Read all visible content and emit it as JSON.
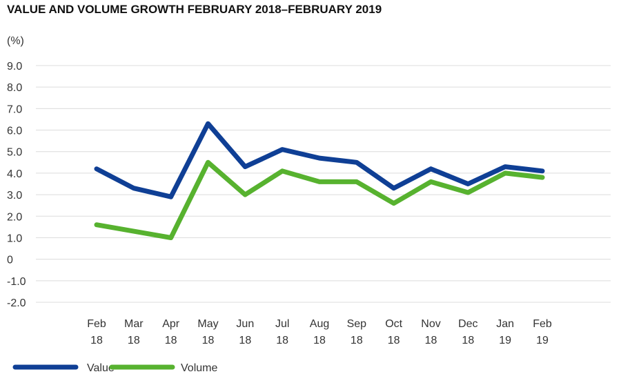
{
  "chart_data": {
    "type": "line",
    "title": "VALUE AND VOLUME GROWTH FEBRUARY 2018–FEBRUARY 2019",
    "ylabel": "(%)",
    "xlabel": "",
    "categories": [
      [
        "Feb",
        "18"
      ],
      [
        "Mar",
        "18"
      ],
      [
        "Apr",
        "18"
      ],
      [
        "May",
        "18"
      ],
      [
        "Jun",
        "18"
      ],
      [
        "Jul",
        "18"
      ],
      [
        "Aug",
        "18"
      ],
      [
        "Sep",
        "18"
      ],
      [
        "Oct",
        "18"
      ],
      [
        "Nov",
        "18"
      ],
      [
        "Dec",
        "18"
      ],
      [
        "Jan",
        "19"
      ],
      [
        "Feb",
        "19"
      ]
    ],
    "yticks": [
      "9.0",
      "8.0",
      "7.0",
      "6.0",
      "5.0",
      "4.0",
      "3.0",
      "2.0",
      "1.0",
      "0",
      "-1.0",
      "-2.0"
    ],
    "ylim": [
      -2,
      9
    ],
    "grid": true,
    "legend_position": "bottom-left",
    "series": [
      {
        "name": "Value",
        "color": "#0f3f95",
        "values": [
          4.2,
          3.3,
          2.9,
          6.3,
          4.3,
          5.1,
          4.7,
          4.5,
          3.3,
          4.2,
          3.5,
          4.3,
          4.1
        ]
      },
      {
        "name": "Volume",
        "color": "#57b22f",
        "values": [
          1.6,
          1.3,
          1.0,
          4.5,
          3.0,
          4.1,
          3.6,
          3.6,
          2.6,
          3.6,
          3.1,
          4.0,
          3.8
        ]
      }
    ]
  }
}
